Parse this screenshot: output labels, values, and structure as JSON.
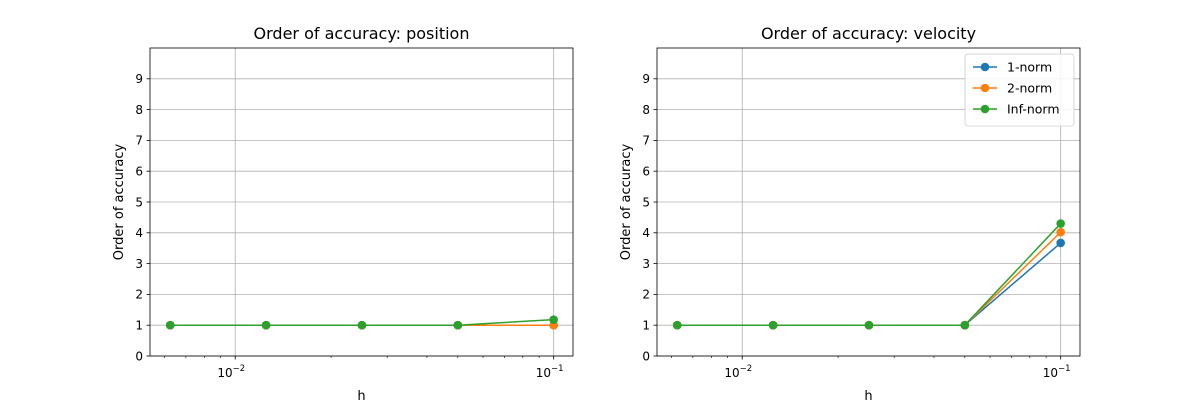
{
  "colors": {
    "series": [
      "#1f77b4",
      "#ff7f0e",
      "#2ca02c"
    ],
    "grid": "#b0b0b0",
    "axes": "#000000",
    "legend_border": "#cccccc"
  },
  "chart_data": [
    {
      "type": "line",
      "title": "Order of accuracy: position",
      "xlabel": "h",
      "ylabel": "Order of accuracy",
      "xscale": "log",
      "xlim": [
        0.0054,
        0.115
      ],
      "ylim": [
        0,
        10
      ],
      "yticks": [
        0,
        1,
        2,
        3,
        4,
        5,
        6,
        7,
        8,
        9
      ],
      "xticks": [
        {
          "value": 0.01,
          "base": "10",
          "exp": "−2"
        },
        {
          "value": 0.1,
          "base": "10",
          "exp": "−1"
        }
      ],
      "grid": true,
      "legend": null,
      "x": [
        0.00625,
        0.0125,
        0.025,
        0.05,
        0.1
      ],
      "series": [
        {
          "name": "1-norm",
          "values": [
            1.0,
            1.0,
            1.0,
            1.0,
            1.0
          ]
        },
        {
          "name": "2-norm",
          "values": [
            1.0,
            1.0,
            1.0,
            1.0,
            1.0
          ]
        },
        {
          "name": "Inf-norm",
          "values": [
            1.0,
            1.0,
            1.0,
            1.0,
            1.18
          ]
        }
      ]
    },
    {
      "type": "line",
      "title": "Order of accuracy: velocity",
      "xlabel": "h",
      "ylabel": "Order of accuracy",
      "xscale": "log",
      "xlim": [
        0.0054,
        0.115
      ],
      "ylim": [
        0,
        10
      ],
      "yticks": [
        0,
        1,
        2,
        3,
        4,
        5,
        6,
        7,
        8,
        9
      ],
      "xticks": [
        {
          "value": 0.01,
          "base": "10",
          "exp": "−2"
        },
        {
          "value": 0.1,
          "base": "10",
          "exp": "−1"
        }
      ],
      "grid": true,
      "legend": "top-right",
      "x": [
        0.00625,
        0.0125,
        0.025,
        0.05,
        0.1
      ],
      "series": [
        {
          "name": "1-norm",
          "values": [
            1.0,
            1.0,
            1.0,
            1.0,
            3.67
          ]
        },
        {
          "name": "2-norm",
          "values": [
            1.0,
            1.0,
            1.0,
            1.0,
            4.02
          ]
        },
        {
          "name": "Inf-norm",
          "values": [
            1.0,
            1.0,
            1.0,
            1.0,
            4.3
          ]
        }
      ]
    }
  ]
}
